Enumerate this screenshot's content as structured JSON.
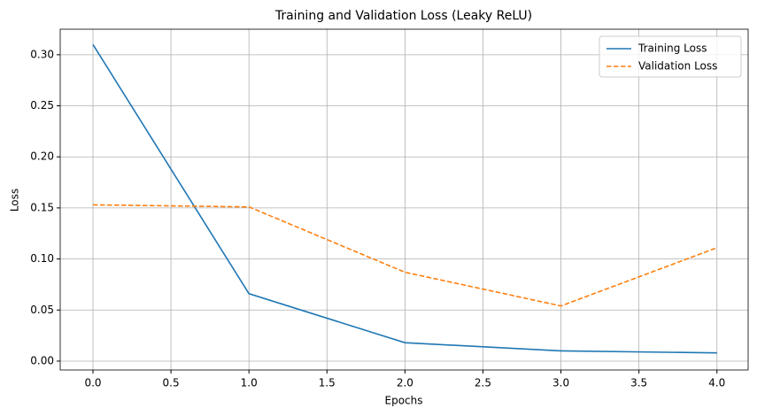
{
  "chart_data": {
    "type": "line",
    "title": "Training and Validation Loss (Leaky ReLU)",
    "x_label": "Epochs",
    "y_label": "Loss",
    "x": [
      0,
      1,
      2,
      3,
      4
    ],
    "series": [
      {
        "name": "Training Loss",
        "color": "#1f77b4",
        "dash": "solid",
        "values": [
          0.31,
          0.066,
          0.018,
          0.01,
          0.008
        ]
      },
      {
        "name": "Validation Loss",
        "color": "#ff7f0e",
        "dash": "dashed",
        "values": [
          0.153,
          0.151,
          0.087,
          0.054,
          0.111
        ]
      }
    ],
    "xlim": [
      -0.21,
      4.2
    ],
    "ylim": [
      -0.0087,
      0.325
    ],
    "xticks": [
      {
        "value": 0,
        "label": "0.0"
      },
      {
        "value": 0.5,
        "label": "0.5"
      },
      {
        "value": 1,
        "label": "1.0"
      },
      {
        "value": 1.5,
        "label": "1.5"
      },
      {
        "value": 2,
        "label": "2.0"
      },
      {
        "value": 2.5,
        "label": "2.5"
      },
      {
        "value": 3,
        "label": "3.0"
      },
      {
        "value": 3.5,
        "label": "3.5"
      },
      {
        "value": 4,
        "label": "4.0"
      }
    ],
    "yticks": [
      {
        "value": 0,
        "label": "0.00"
      },
      {
        "value": 0.05,
        "label": "0.05"
      },
      {
        "value": 0.1,
        "label": "0.10"
      },
      {
        "value": 0.15,
        "label": "0.15"
      },
      {
        "value": 0.2,
        "label": "0.20"
      },
      {
        "value": 0.25,
        "label": "0.25"
      },
      {
        "value": 0.3,
        "label": "0.30"
      }
    ],
    "grid": true,
    "legend": "upper right"
  }
}
